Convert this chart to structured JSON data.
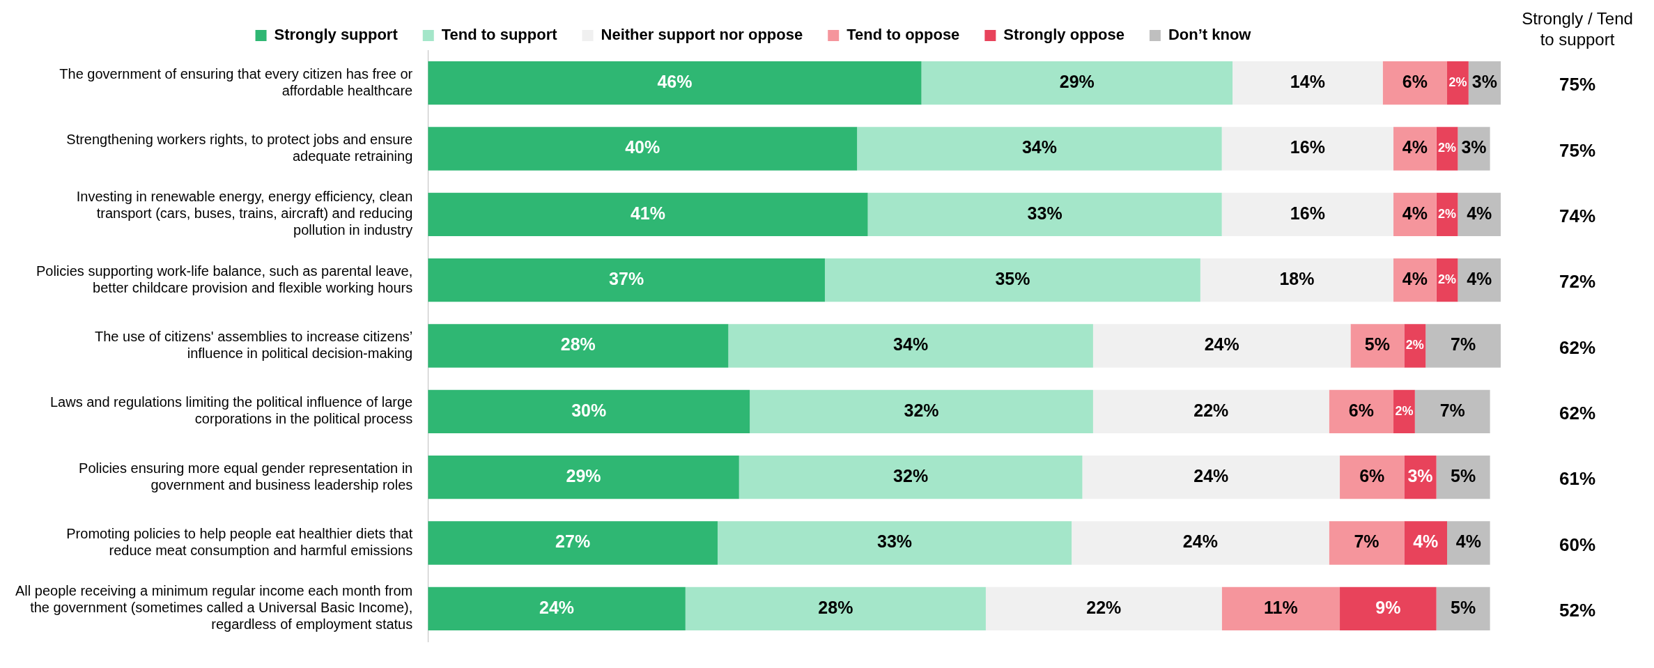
{
  "chart_data": {
    "type": "bar",
    "orientation": "horizontal",
    "stacked": true,
    "legend": "top",
    "categories": [
      "The government of ensuring that every citizen has free or affordable healthcare",
      "Strengthening workers rights, to protect jobs and ensure adequate retraining",
      "Investing in renewable energy, energy efficiency, clean transport (cars, buses, trains, aircraft) and reducing pollution in industry",
      "Policies supporting work-life balance, such as parental leave, better childcare provision and flexible working hours",
      "The use of citizens' assemblies to increase citizens’ influence in political decision-making",
      "Laws and regulations limiting the political influence of large corporations in the political process",
      "Policies ensuring more equal gender representation in government and business leadership roles",
      "Promoting policies to help people eat healthier diets that reduce meat consumption and harmful emissions",
      "All people receiving a minimum regular income each month from the government (sometimes called a Universal Basic Income), regardless of employment status"
    ],
    "series": [
      {
        "name": "Strongly support",
        "color": "#2fb773",
        "values": [
          46,
          40,
          41,
          37,
          28,
          30,
          29,
          27,
          24
        ],
        "value_labels": [
          "46%",
          "40%",
          "41%",
          "37%",
          "28%",
          "30%",
          "29%",
          "27%",
          "24%"
        ]
      },
      {
        "name": "Tend to support",
        "color": "#a4e6c9",
        "values": [
          29,
          34,
          33,
          35,
          34,
          32,
          32,
          33,
          28
        ],
        "value_labels": [
          "29%",
          "34%",
          "33%",
          "35%",
          "34%",
          "32%",
          "32%",
          "33%",
          "28%"
        ]
      },
      {
        "name": "Neither support nor oppose",
        "color": "#f0f0f0",
        "values": [
          14,
          16,
          16,
          18,
          24,
          22,
          24,
          24,
          22
        ],
        "value_labels": [
          "14%",
          "16%",
          "16%",
          "18%",
          "24%",
          "22%",
          "24%",
          "24%",
          "22%"
        ]
      },
      {
        "name": "Tend to oppose",
        "color": "#f5959c",
        "values": [
          6,
          4,
          4,
          4,
          5,
          6,
          6,
          7,
          11
        ],
        "value_labels": [
          "6%",
          "4%",
          "4%",
          "4%",
          "5%",
          "6%",
          "6%",
          "7%",
          "11%"
        ]
      },
      {
        "name": "Strongly oppose",
        "color": "#e8435b",
        "values": [
          2,
          2,
          2,
          2,
          2,
          2,
          3,
          4,
          9
        ],
        "value_labels": [
          "2%",
          "2%",
          "2%",
          "2%",
          "2%",
          "2%",
          "3%",
          "4%",
          "9%"
        ]
      },
      {
        "name": "Don’t know",
        "color": "#bfbfbf",
        "values": [
          3,
          3,
          4,
          4,
          7,
          7,
          5,
          4,
          5
        ],
        "value_labels": [
          "3%",
          "3%",
          "4%",
          "4%",
          "7%",
          "7%",
          "5%",
          "4%",
          "5%"
        ]
      }
    ],
    "annotations": [
      "Strongly / Tend to support",
      "75%",
      "75%",
      "74%",
      "72%",
      "62%",
      "62%",
      "61%",
      "60%",
      "52%"
    ]
  }
}
